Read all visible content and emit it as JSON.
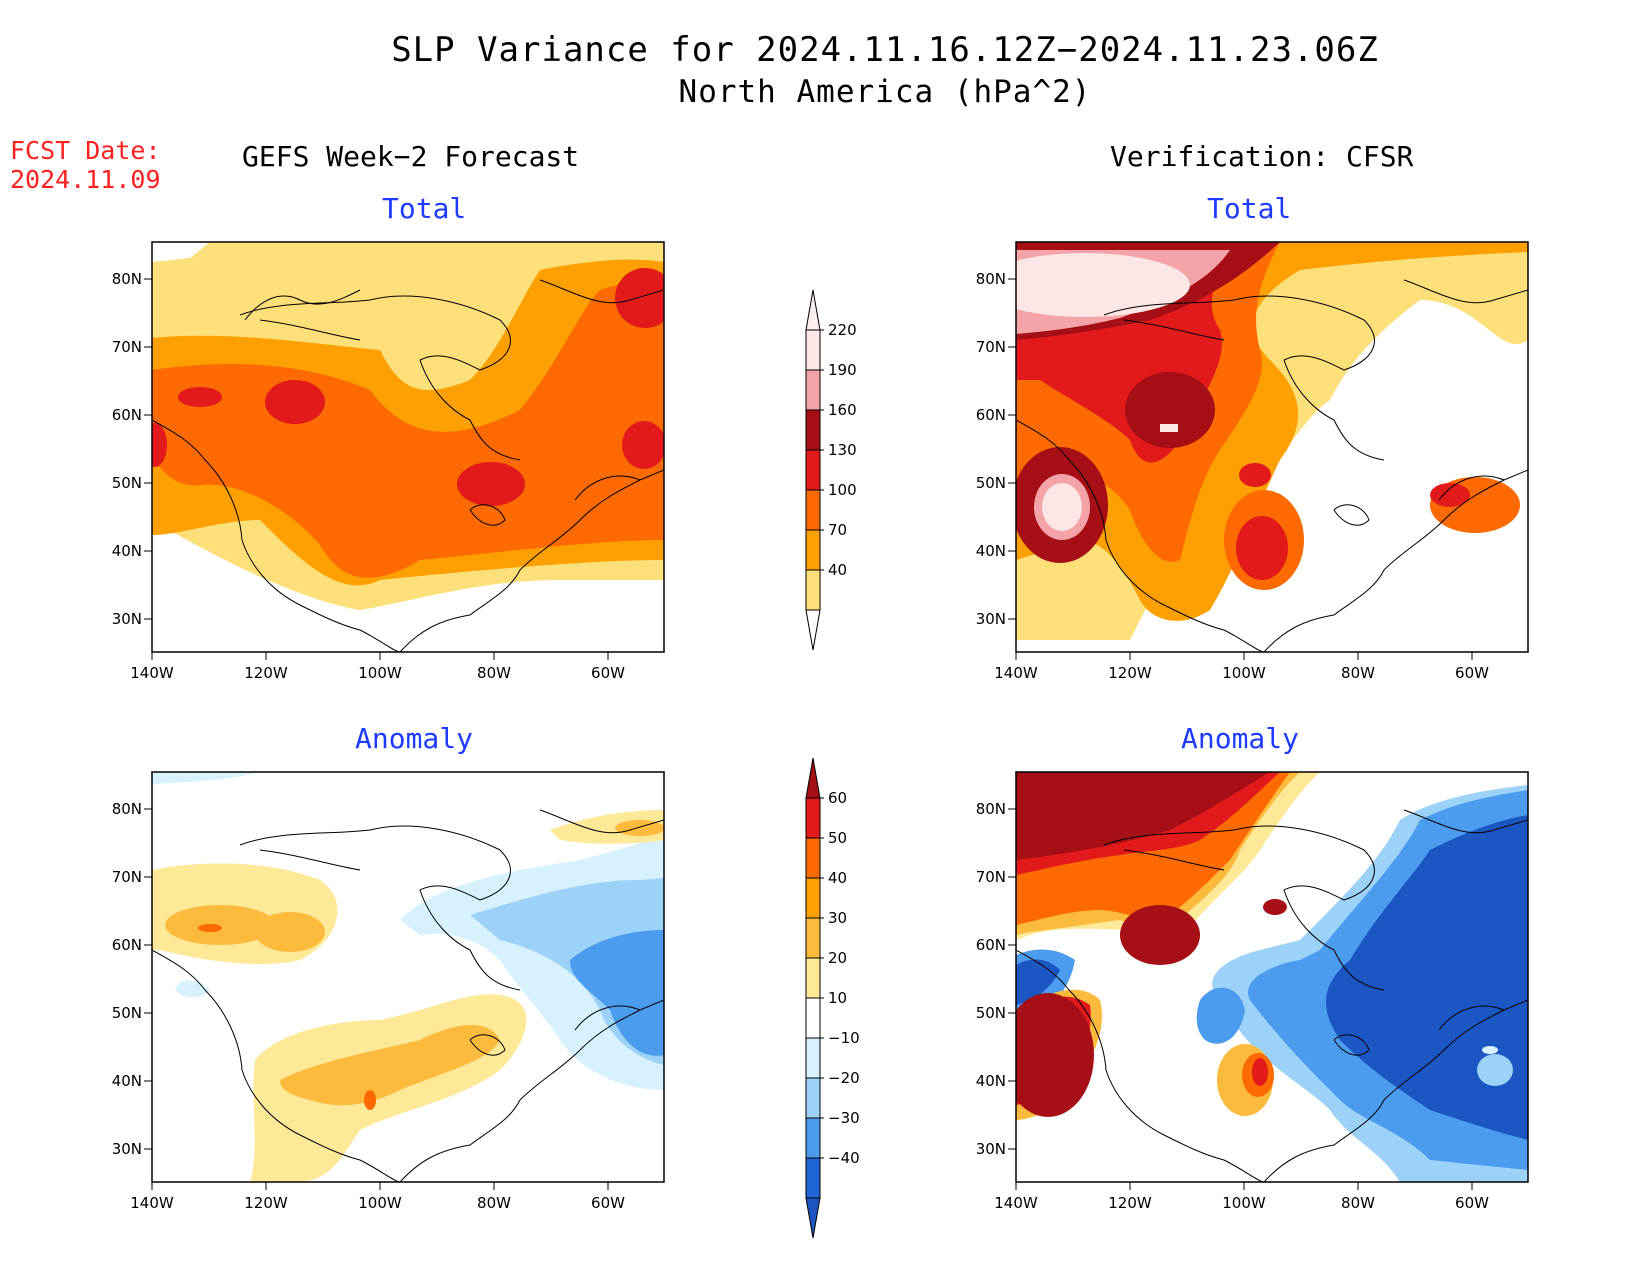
{
  "title_line1": "SLP Variance for 2024.11.16.12Z−2024.11.23.06Z",
  "title_line2": "North America (hPa^2)",
  "fcst_label": "FCST Date:",
  "fcst_date": "2024.11.09",
  "left_column_title": "GEFS Week−2 Forecast",
  "right_column_title": "Verification: CFSR",
  "panels": {
    "tl": {
      "title": "Total"
    },
    "tr": {
      "title": "Total"
    },
    "bl": {
      "title": "Anomaly"
    },
    "br": {
      "title": "Anomaly"
    }
  },
  "axes": {
    "lon_ticks": [
      "140W",
      "120W",
      "100W",
      "80W",
      "60W"
    ],
    "lat_ticks": [
      "80N",
      "70N",
      "60N",
      "50N",
      "40N",
      "30N"
    ]
  },
  "colorbar_total": {
    "labels": [
      "220",
      "190",
      "160",
      "130",
      "100",
      "70",
      "40"
    ],
    "colors": [
      "#fde6e6",
      "#f4a3a8",
      "#a50f15",
      "#e31a1c",
      "#fd6a02",
      "#fea001",
      "#fee07a"
    ]
  },
  "colorbar_anomaly": {
    "labels": [
      "60",
      "50",
      "40",
      "30",
      "20",
      "10",
      "−10",
      "−20",
      "−30",
      "−40"
    ],
    "colors": [
      "#a50f15",
      "#e31a1c",
      "#fd6a02",
      "#fea001",
      "#fdbb3e",
      "#fee999",
      "#ffffff",
      "#d7f1fe",
      "#9cd2f7",
      "#4b9bee",
      "#1f65d6",
      "#1b56c3"
    ]
  }
}
